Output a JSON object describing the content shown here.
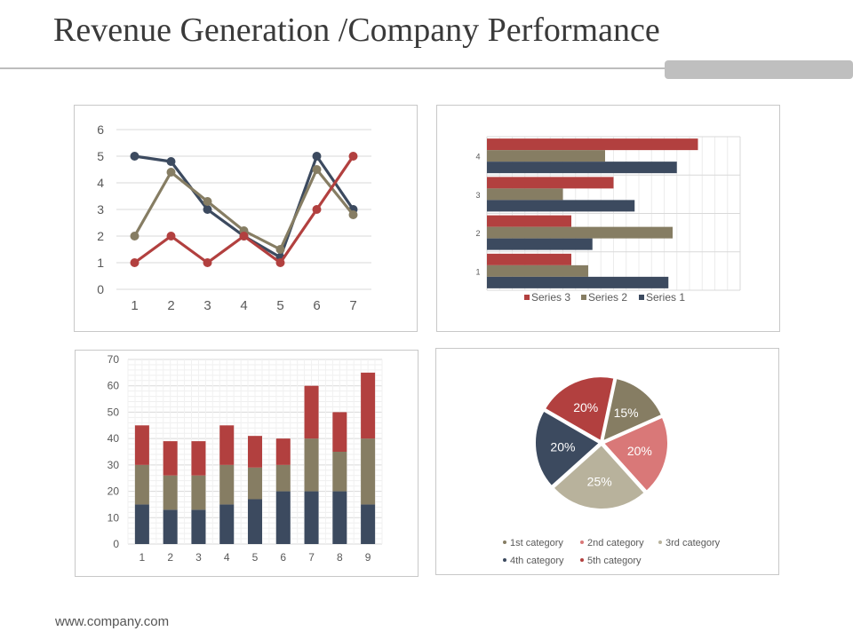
{
  "title": "Revenue Generation /Company Performance",
  "footer": "www.company.com",
  "colors": {
    "red": "#b2403f",
    "khaki": "#867d63",
    "navy": "#3c4a5f",
    "pink": "#d97878",
    "beige": "#b8b29c",
    "grid": "#d9d9d9",
    "axis_text": "#595959"
  },
  "chart_data": [
    {
      "type": "line",
      "x": [
        1,
        2,
        3,
        4,
        5,
        6,
        7
      ],
      "ylim": [
        0,
        6
      ],
      "yticks": [
        0,
        1,
        2,
        3,
        4,
        5,
        6
      ],
      "series": [
        {
          "name": "navy",
          "color": "#3c4a5f",
          "values": [
            5,
            4.8,
            3,
            2,
            1.2,
            5,
            3
          ]
        },
        {
          "name": "khaki",
          "color": "#867d63",
          "values": [
            2,
            4.4,
            3.3,
            2.2,
            1.5,
            4.5,
            2.8
          ]
        },
        {
          "name": "red",
          "color": "#b2403f",
          "values": [
            1,
            2,
            1,
            2,
            1,
            3,
            5
          ]
        }
      ]
    },
    {
      "type": "bar",
      "orientation": "horizontal",
      "categories": [
        "1",
        "2",
        "3",
        "4"
      ],
      "xlim": [
        0,
        6
      ],
      "series": [
        {
          "name": "Series 1",
          "color": "#3c4a5f",
          "values": [
            4.3,
            2.5,
            3.5,
            4.5
          ]
        },
        {
          "name": "Series 2",
          "color": "#867d63",
          "values": [
            2.4,
            4.4,
            1.8,
            2.8
          ]
        },
        {
          "name": "Series 3",
          "color": "#b2403f",
          "values": [
            2.0,
            2.0,
            3.0,
            5.0
          ]
        }
      ],
      "legend": [
        "Series 3",
        "Series 2",
        "Series 1"
      ]
    },
    {
      "type": "bar",
      "stacked": true,
      "categories": [
        "1",
        "2",
        "3",
        "4",
        "5",
        "6",
        "7",
        "8",
        "9"
      ],
      "ylim": [
        0,
        70
      ],
      "yticks": [
        0,
        10,
        20,
        30,
        40,
        50,
        60,
        70
      ],
      "series": [
        {
          "name": "bottom",
          "color": "#3c4a5f",
          "values": [
            15,
            13,
            13,
            15,
            17,
            20,
            20,
            20,
            15
          ]
        },
        {
          "name": "middle",
          "color": "#867d63",
          "values": [
            15,
            13,
            13,
            15,
            12,
            10,
            20,
            15,
            25
          ]
        },
        {
          "name": "top",
          "color": "#b2403f",
          "values": [
            15,
            13,
            13,
            15,
            12,
            10,
            20,
            15,
            25
          ]
        }
      ]
    },
    {
      "type": "pie",
      "slices": [
        {
          "label": "1st category",
          "value": 15,
          "text": "15%",
          "color": "#867d63"
        },
        {
          "label": "2nd category",
          "value": 20,
          "text": "20%",
          "color": "#d97878"
        },
        {
          "label": "3rd category",
          "value": 25,
          "text": "25%",
          "color": "#b8b29c"
        },
        {
          "label": "4th category",
          "value": 20,
          "text": "20%",
          "color": "#3c4a5f"
        },
        {
          "label": "5th category",
          "value": 20,
          "text": "20%",
          "color": "#b2403f"
        }
      ]
    }
  ]
}
